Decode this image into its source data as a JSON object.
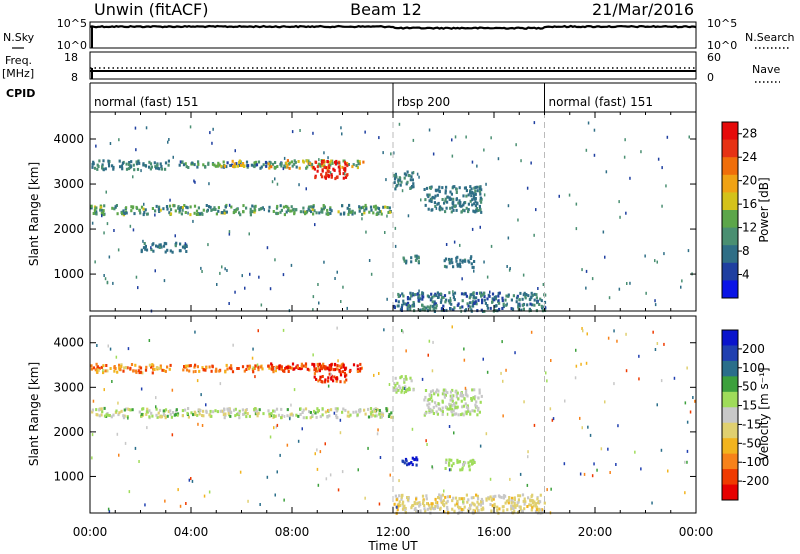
{
  "header": {
    "station": "Unwin (fitACF)",
    "beam": "Beam 12",
    "date": "21/Mar/2016"
  },
  "strip_sky": {
    "left_label": "N.Sky",
    "ticks_left": [
      "10^5",
      "10^0"
    ],
    "ticks_right": [
      "10^5",
      "10^0"
    ],
    "right_label": "N.Search"
  },
  "strip_freq": {
    "left_label": "Freq.",
    "left_unit": "[MHz]",
    "ticks_left": [
      "18",
      "8"
    ],
    "ticks_right": [
      "60",
      "0"
    ],
    "right_label": "Nave"
  },
  "cpid": {
    "label": "CPID",
    "segments": [
      {
        "name": "normal (fast) 151",
        "start_hour": 0,
        "end_hour": 12
      },
      {
        "name": "rbsp 200",
        "start_hour": 12,
        "end_hour": 18
      },
      {
        "name": "normal (fast) 151",
        "start_hour": 18,
        "end_hour": 24
      }
    ]
  },
  "colors": {
    "power_scale": [
      "#0a14e6",
      "#1f3fa0",
      "#2f6e86",
      "#4a8f72",
      "#5ca64a",
      "#d4c21a",
      "#f0a214",
      "#f06e0a",
      "#e63214",
      "#e60a0a"
    ],
    "velocity_scale": [
      "#e60000",
      "#ef3a00",
      "#f7821a",
      "#f2b41e",
      "#e0d070",
      "#c8c8c8",
      "#9fdc5a",
      "#3ca03c",
      "#2a6e8a",
      "#2040b0",
      "#0a14cc"
    ]
  },
  "chart_data": [
    {
      "type": "heatmap",
      "name": "power",
      "ylabel": "Slant Range [km]",
      "y_ticks": [
        "1000",
        "2000",
        "3000",
        "4000"
      ],
      "ylim": [
        180,
        4600
      ],
      "x_ticks": [
        "00:00",
        "04:00",
        "08:00",
        "12:00",
        "16:00",
        "20:00",
        "00:00"
      ],
      "xlim_hours": [
        0,
        24
      ],
      "colorbar_label": "Power [dB]",
      "colorbar_ticks": [
        "28",
        "24",
        "20",
        "16",
        "12",
        "8",
        "4"
      ],
      "colorbar_range": [
        0,
        30
      ],
      "regions": [
        {
          "t": [
            0.0,
            3.2
          ],
          "r": [
            3350,
            3550
          ],
          "v": [
            6,
            12
          ]
        },
        {
          "t": [
            3.5,
            8.0
          ],
          "r": [
            3380,
            3530
          ],
          "v": [
            4,
            14
          ]
        },
        {
          "t": [
            5.0,
            6.2
          ],
          "r": [
            3420,
            3560
          ],
          "v": [
            14,
            20
          ]
        },
        {
          "t": [
            7.0,
            10.8
          ],
          "r": [
            3380,
            3560
          ],
          "v": [
            8,
            22
          ]
        },
        {
          "t": [
            8.8,
            10.2
          ],
          "r": [
            3150,
            3550
          ],
          "v": [
            24,
            30
          ]
        },
        {
          "t": [
            0.0,
            12.0
          ],
          "r": [
            2350,
            2560
          ],
          "v": [
            6,
            16
          ]
        },
        {
          "t": [
            2.0,
            3.8
          ],
          "r": [
            1520,
            1720
          ],
          "v": [
            6,
            10
          ]
        },
        {
          "t": [
            12.0,
            12.8
          ],
          "r": [
            2920,
            3300
          ],
          "v": [
            6,
            10
          ]
        },
        {
          "t": [
            13.2,
            15.5
          ],
          "r": [
            2400,
            2980
          ],
          "v": [
            6,
            10
          ]
        },
        {
          "t": [
            12.3,
            13.0
          ],
          "r": [
            1280,
            1480
          ],
          "v": [
            6,
            10
          ]
        },
        {
          "t": [
            14.0,
            15.2
          ],
          "r": [
            1180,
            1420
          ],
          "v": [
            6,
            10
          ]
        },
        {
          "t": [
            12.0,
            18.0
          ],
          "r": [
            200,
            620
          ],
          "v": [
            4,
            12
          ]
        },
        {
          "t": [
            0.0,
            24.0
          ],
          "r": [
            200,
            4400
          ],
          "v": [
            4,
            12
          ],
          "sparse": true
        }
      ]
    },
    {
      "type": "heatmap",
      "name": "velocity",
      "ylabel": "Slant Range [km]",
      "y_ticks": [
        "1000",
        "2000",
        "3000",
        "4000"
      ],
      "ylim": [
        180,
        4600
      ],
      "x_ticks": [
        "00:00",
        "04:00",
        "08:00",
        "12:00",
        "16:00",
        "20:00",
        "00:00"
      ],
      "xlim_hours": [
        0,
        24
      ],
      "xlabel": "Time UT",
      "colorbar_label": "Velocity [m s⁻¹]",
      "colorbar_ticks": [
        "200",
        "100",
        "50",
        "15",
        "-15",
        "-50",
        "-100",
        "-200"
      ],
      "colorbar_range": [
        -250,
        250
      ],
      "regions": [
        {
          "t": [
            0.0,
            3.2
          ],
          "r": [
            3350,
            3550
          ],
          "v": [
            -200,
            -50
          ]
        },
        {
          "t": [
            3.5,
            8.0
          ],
          "r": [
            3380,
            3530
          ],
          "v": [
            -200,
            -100
          ]
        },
        {
          "t": [
            7.0,
            10.8
          ],
          "r": [
            3380,
            3560
          ],
          "v": [
            -250,
            -120
          ]
        },
        {
          "t": [
            8.8,
            10.2
          ],
          "r": [
            3150,
            3550
          ],
          "v": [
            -250,
            -150
          ]
        },
        {
          "t": [
            0.0,
            12.0
          ],
          "r": [
            2350,
            2560
          ],
          "v": [
            -50,
            80
          ]
        },
        {
          "t": [
            12.0,
            12.8
          ],
          "r": [
            2920,
            3300
          ],
          "v": [
            -15,
            60
          ]
        },
        {
          "t": [
            13.2,
            15.5
          ],
          "r": [
            2400,
            2980
          ],
          "v": [
            -15,
            60
          ]
        },
        {
          "t": [
            12.3,
            13.0
          ],
          "r": [
            1280,
            1480
          ],
          "v": [
            180,
            240
          ]
        },
        {
          "t": [
            14.0,
            15.2
          ],
          "r": [
            1180,
            1420
          ],
          "v": [
            20,
            50
          ]
        },
        {
          "t": [
            12.0,
            18.0
          ],
          "r": [
            200,
            620
          ],
          "v": [
            -80,
            15
          ]
        },
        {
          "t": [
            0.0,
            24.0
          ],
          "r": [
            200,
            4400
          ],
          "v": [
            -200,
            200
          ],
          "sparse": true
        }
      ]
    }
  ]
}
